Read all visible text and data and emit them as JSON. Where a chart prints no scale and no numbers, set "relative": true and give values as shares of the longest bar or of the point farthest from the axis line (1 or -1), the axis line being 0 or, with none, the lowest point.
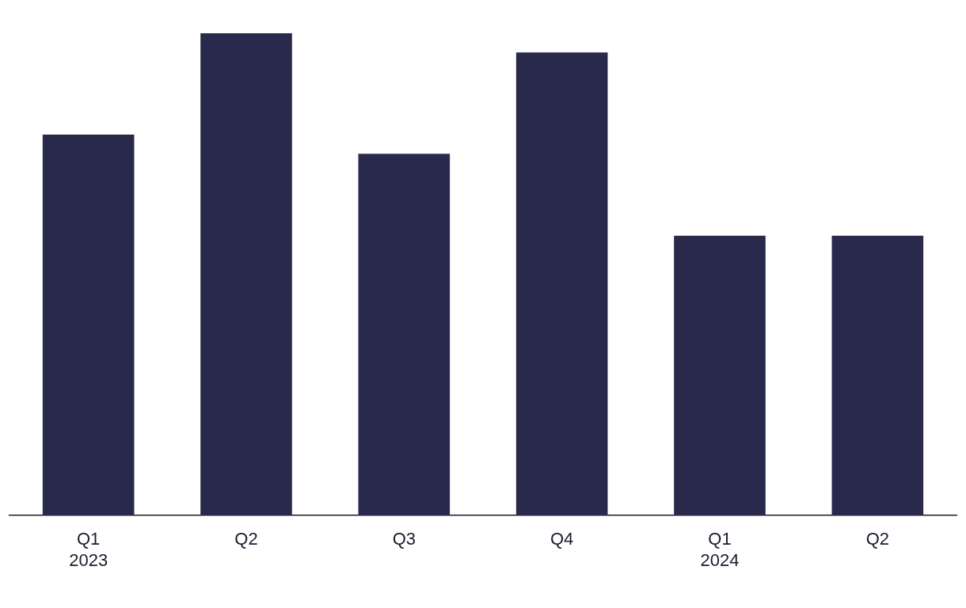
{
  "chart_data": {
    "type": "bar",
    "relative": true,
    "categories": [
      "Q1\n2023",
      "Q2",
      "Q3",
      "Q4",
      "Q1\n2024",
      "Q2"
    ],
    "values": [
      0.79,
      1,
      0.75,
      0.96,
      0.58,
      0.58
    ],
    "color": "#29294b"
  }
}
